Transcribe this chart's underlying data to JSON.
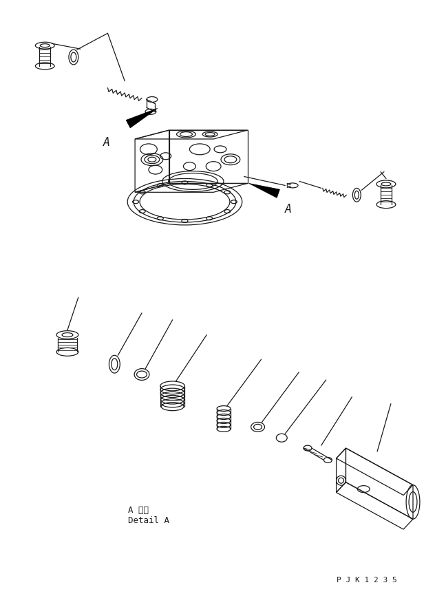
{
  "bg_color": "#ffffff",
  "line_color": "#1a1a1a",
  "fig_width": 6.48,
  "fig_height": 8.66,
  "dpi": 100,
  "detail_text1": "A 詳細",
  "detail_text2": "Detail A",
  "watermark": "P J K 1 2 3 5"
}
